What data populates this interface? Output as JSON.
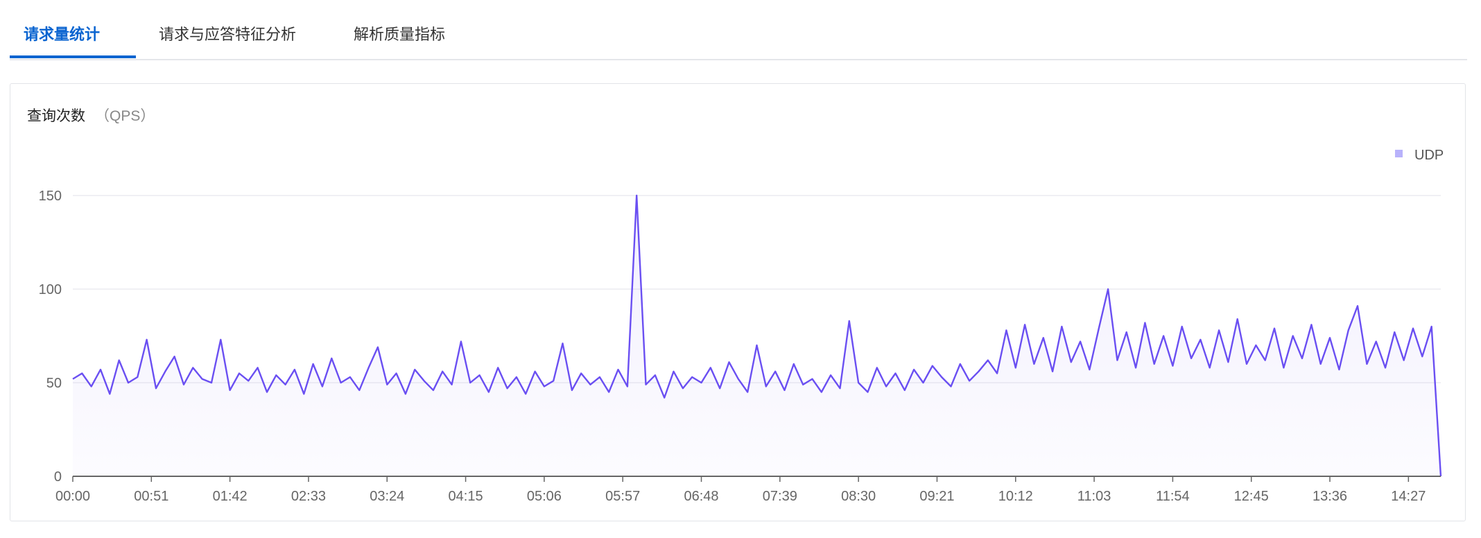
{
  "tabs": [
    {
      "label": "请求量统计",
      "active": true
    },
    {
      "label": "请求与应答特征分析",
      "active": false
    },
    {
      "label": "解析质量指标",
      "active": false
    }
  ],
  "card": {
    "title": "查询次数",
    "unit": "（QPS）"
  },
  "colors": {
    "accent": "#0a64d0",
    "line": "#6a4ff2",
    "legend": "#b8b2fb"
  },
  "chart_data": {
    "type": "area",
    "title": "查询次数",
    "xlabel": "",
    "ylabel": "",
    "ylim": [
      0,
      150
    ],
    "yticks": [
      0,
      50,
      100,
      150
    ],
    "xticks": [
      "00:00",
      "00:51",
      "01:42",
      "02:33",
      "03:24",
      "04:15",
      "05:06",
      "05:57",
      "06:48",
      "07:39",
      "08:30",
      "09:21",
      "10:12",
      "11:03",
      "11:54",
      "12:45",
      "13:36",
      "14:27"
    ],
    "grid": true,
    "legend": "top-right",
    "series": [
      {
        "name": "UDP",
        "x": [
          "00:00",
          "00:06",
          "00:12",
          "00:18",
          "00:24",
          "00:30",
          "00:36",
          "00:42",
          "00:48",
          "00:54",
          "01:00",
          "01:06",
          "01:12",
          "01:18",
          "01:24",
          "01:30",
          "01:36",
          "01:42",
          "01:48",
          "01:54",
          "02:00",
          "02:06",
          "02:12",
          "02:18",
          "02:24",
          "02:30",
          "02:36",
          "02:42",
          "02:48",
          "02:54",
          "03:00",
          "03:06",
          "03:12",
          "03:18",
          "03:24",
          "03:30",
          "03:36",
          "03:42",
          "03:48",
          "03:54",
          "04:00",
          "04:06",
          "04:12",
          "04:18",
          "04:24",
          "04:30",
          "04:36",
          "04:42",
          "04:48",
          "04:54",
          "05:00",
          "05:06",
          "05:12",
          "05:18",
          "05:24",
          "05:30",
          "05:36",
          "05:42",
          "05:48",
          "05:54",
          "06:00",
          "06:06",
          "06:12",
          "06:18",
          "06:24",
          "06:30",
          "06:36",
          "06:42",
          "06:48",
          "06:54",
          "07:00",
          "07:06",
          "07:12",
          "07:18",
          "07:24",
          "07:30",
          "07:36",
          "07:42",
          "07:48",
          "07:54",
          "08:00",
          "08:06",
          "08:12",
          "08:18",
          "08:24",
          "08:30",
          "08:36",
          "08:42",
          "08:48",
          "08:54",
          "09:00",
          "09:06",
          "09:12",
          "09:18",
          "09:24",
          "09:30",
          "09:36",
          "09:42",
          "09:48",
          "09:54",
          "10:00",
          "10:06",
          "10:12",
          "10:18",
          "10:24",
          "10:30",
          "10:36",
          "10:42",
          "10:48",
          "10:54",
          "11:00",
          "11:06",
          "11:12",
          "11:18",
          "11:24",
          "11:30",
          "11:36",
          "11:42",
          "11:48",
          "11:54",
          "12:00",
          "12:06",
          "12:12",
          "12:18",
          "12:24",
          "12:30",
          "12:36",
          "12:42",
          "12:48",
          "12:54",
          "13:00",
          "13:06",
          "13:12",
          "13:18",
          "13:24",
          "13:30",
          "13:36",
          "13:42",
          "13:48",
          "13:54",
          "14:00",
          "14:06",
          "14:12",
          "14:18",
          "14:24",
          "14:30",
          "14:36",
          "14:42",
          "14:48"
        ],
        "values": [
          52,
          55,
          48,
          57,
          44,
          62,
          50,
          53,
          73,
          47,
          56,
          64,
          49,
          58,
          52,
          50,
          73,
          46,
          55,
          51,
          58,
          45,
          54,
          49,
          57,
          44,
          60,
          48,
          63,
          50,
          53,
          46,
          58,
          69,
          49,
          55,
          44,
          57,
          51,
          46,
          56,
          49,
          72,
          50,
          54,
          45,
          58,
          47,
          53,
          44,
          56,
          48,
          51,
          71,
          46,
          55,
          49,
          53,
          45,
          57,
          48,
          150,
          49,
          54,
          42,
          56,
          47,
          53,
          50,
          58,
          47,
          61,
          52,
          45,
          70,
          48,
          56,
          46,
          60,
          49,
          52,
          45,
          54,
          47,
          83,
          50,
          45,
          58,
          48,
          55,
          46,
          57,
          50,
          59,
          53,
          48,
          60,
          51,
          56,
          62,
          55,
          78,
          58,
          81,
          60,
          74,
          56,
          80,
          61,
          72,
          57,
          79,
          100,
          62,
          77,
          58,
          82,
          60,
          75,
          59,
          80,
          63,
          73,
          58,
          78,
          61,
          84,
          60,
          70,
          62,
          79,
          58,
          75,
          63,
          81,
          60,
          74,
          57,
          78,
          91,
          60,
          72,
          58,
          77,
          62,
          79,
          64,
          80,
          0
        ]
      }
    ]
  }
}
